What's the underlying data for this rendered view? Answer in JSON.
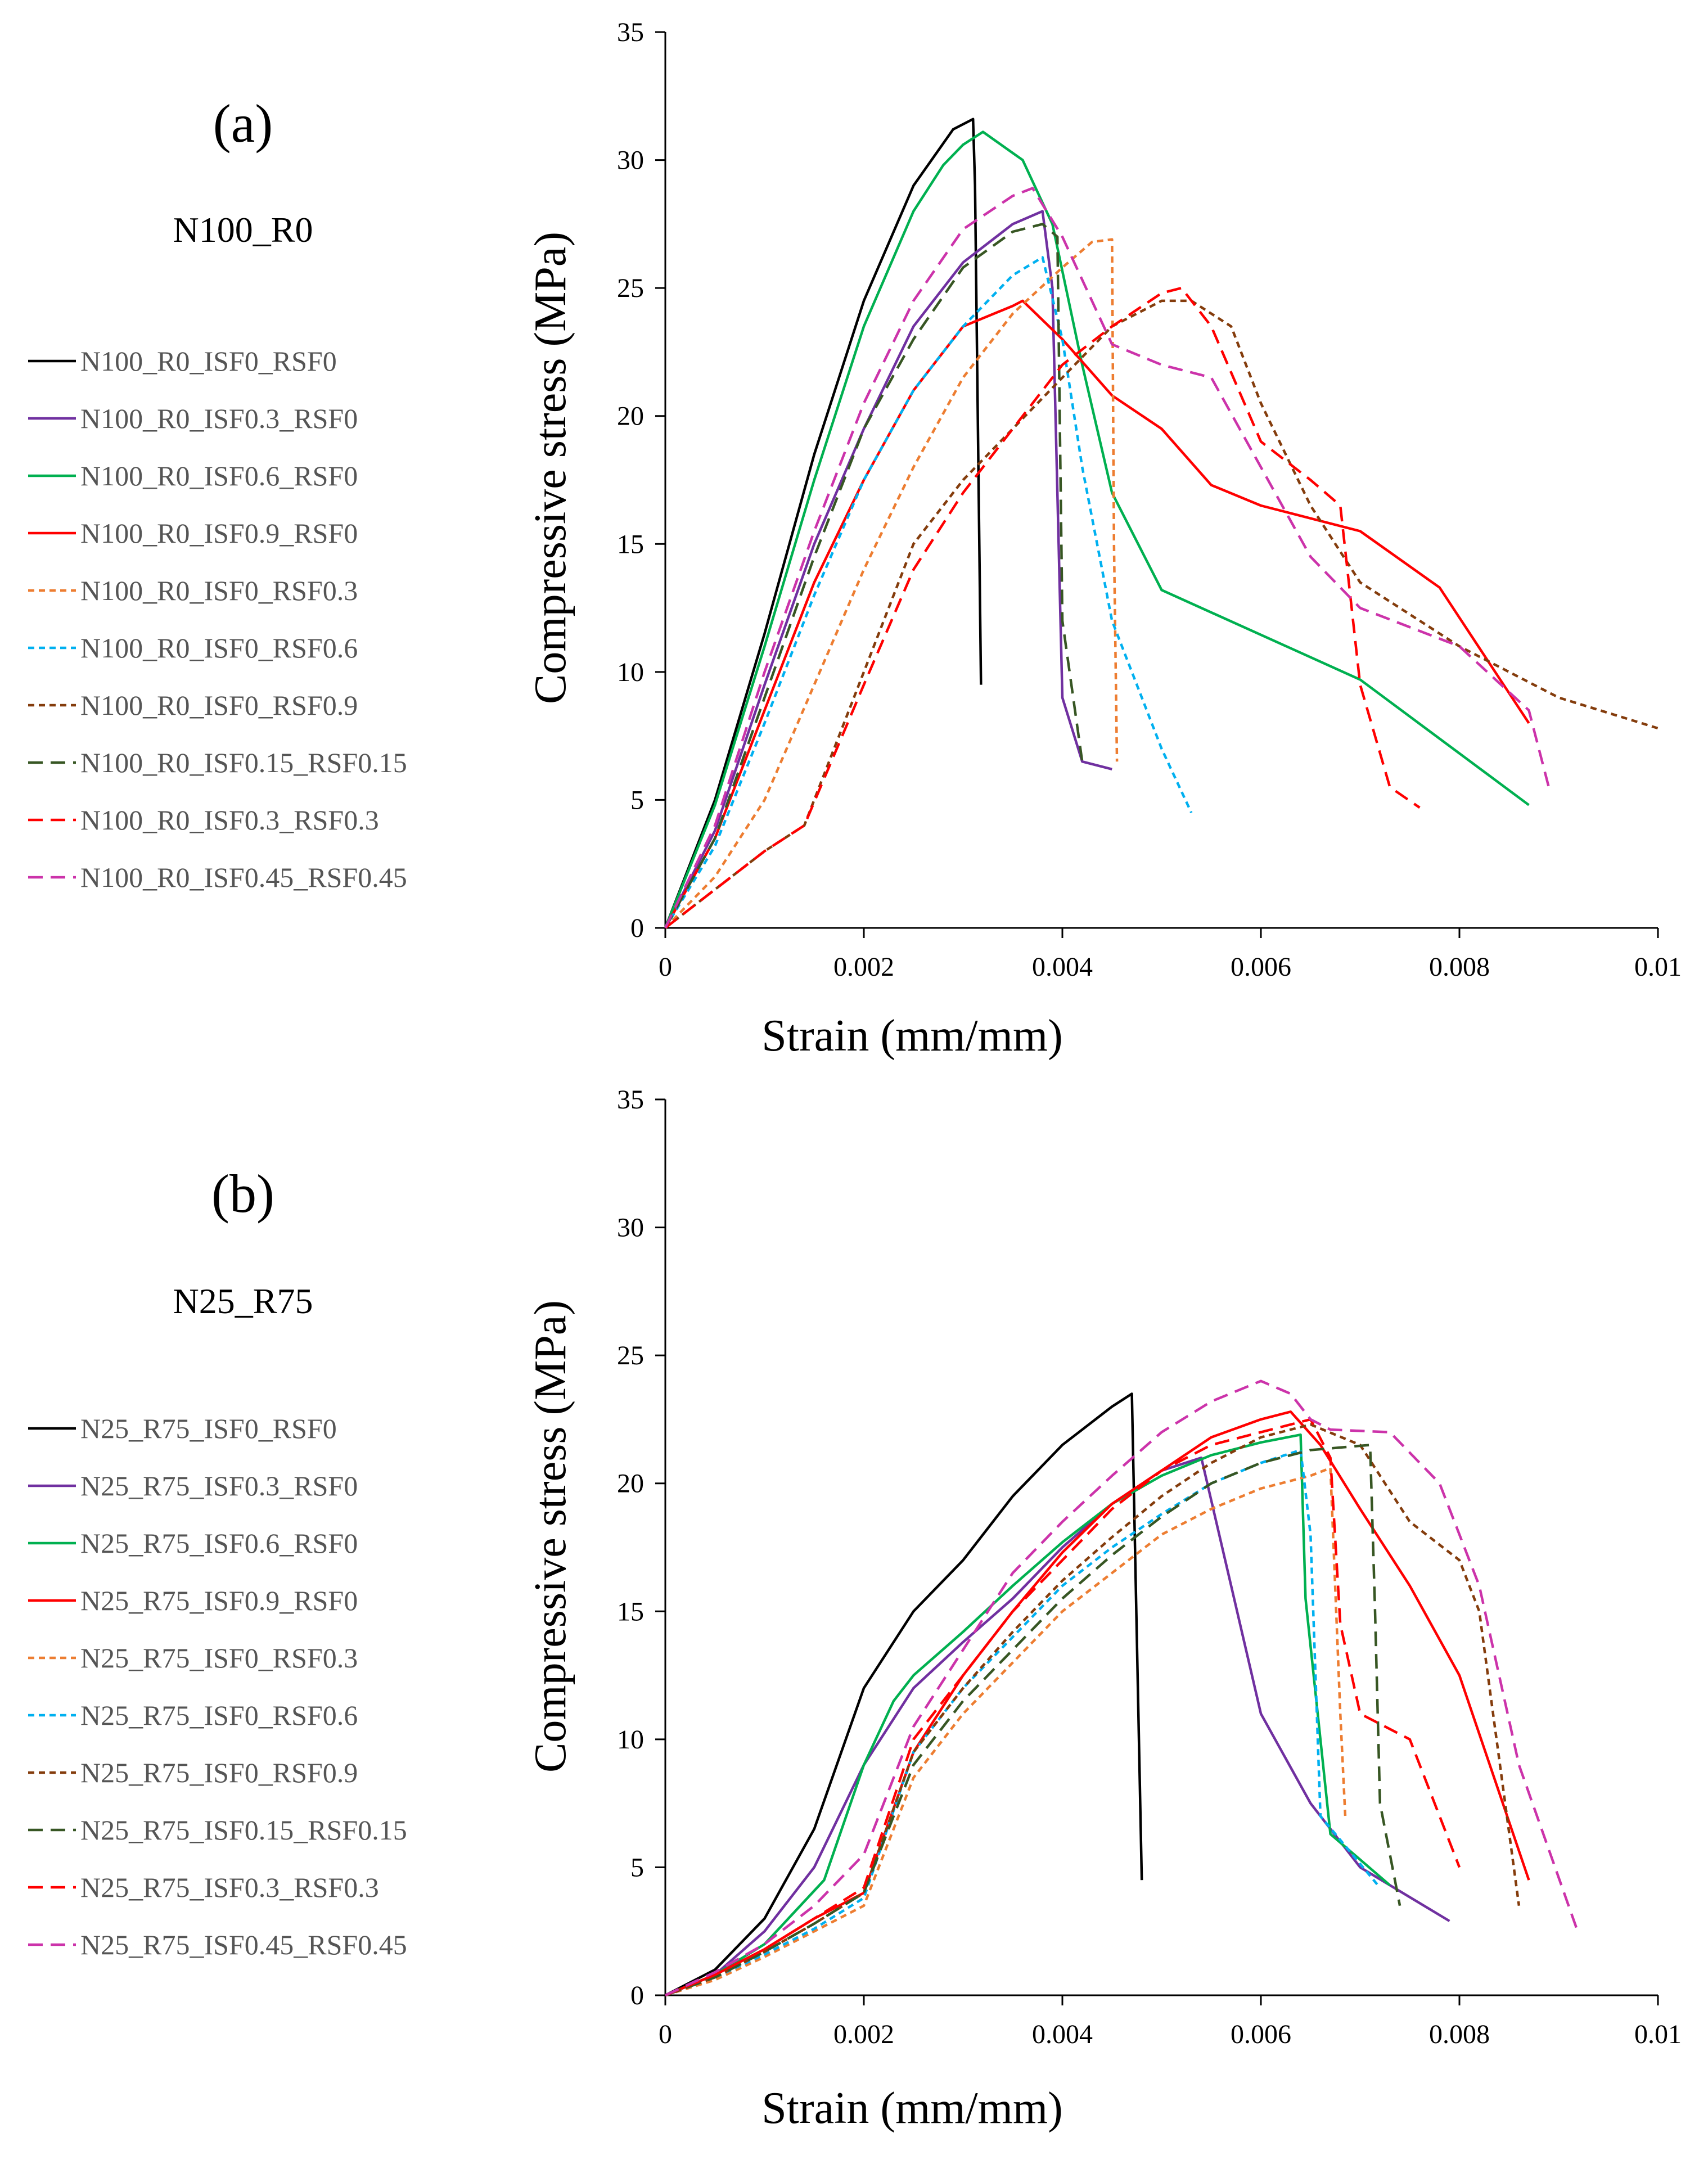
{
  "chart_data": [
    {
      "type": "line",
      "panel_label": "(a)",
      "group_label": "N100_R0",
      "xlabel": "Strain (mm/mm)",
      "ylabel": "Compressive stress (MPa)",
      "xlim": [
        0,
        0.01
      ],
      "ylim": [
        0,
        35
      ],
      "xticks": [
        0,
        0.002,
        0.004,
        0.006,
        0.008,
        0.01
      ],
      "xtick_labels": [
        "0",
        "0.002",
        "0.004",
        "0.006",
        "0.008",
        "0.01"
      ],
      "yticks": [
        0,
        5,
        10,
        15,
        20,
        25,
        30,
        35
      ],
      "ytick_labels": [
        "0",
        "5",
        "10",
        "15",
        "20",
        "25",
        "30",
        "35"
      ],
      "grid": false,
      "legend_position": "left",
      "series": [
        {
          "name": "N100_R0_ISF0_RSF0",
          "color": "#000000",
          "dash": "solid",
          "x": [
            0,
            0.0005,
            0.001,
            0.0015,
            0.002,
            0.0025,
            0.0029,
            0.0031,
            0.00312,
            0.00318
          ],
          "y": [
            0,
            5,
            11.5,
            18.5,
            24.5,
            29,
            31.2,
            31.6,
            29,
            9.5
          ]
        },
        {
          "name": "N100_R0_ISF0.3_RSF0",
          "color": "#7030A0",
          "dash": "solid",
          "x": [
            0,
            0.0005,
            0.001,
            0.0015,
            0.002,
            0.0025,
            0.003,
            0.0035,
            0.0038,
            0.0039,
            0.004,
            0.0042,
            0.0045
          ],
          "y": [
            0,
            3.8,
            9.5,
            15,
            19.5,
            23.5,
            26,
            27.5,
            28,
            25,
            9,
            6.5,
            6.2
          ]
        },
        {
          "name": "N100_R0_ISF0.6_RSF0",
          "color": "#00B050",
          "dash": "solid",
          "x": [
            0,
            0.0005,
            0.001,
            0.0015,
            0.002,
            0.0025,
            0.0028,
            0.003,
            0.0032,
            0.0036,
            0.0039,
            0.0042,
            0.0045,
            0.005,
            0.007,
            0.0087
          ],
          "y": [
            0,
            4.8,
            11,
            17.5,
            23.5,
            28,
            29.8,
            30.6,
            31.1,
            30,
            27.5,
            22,
            17,
            13.2,
            9.7,
            4.8
          ]
        },
        {
          "name": "N100_R0_ISF0.9_RSF0",
          "color": "#FF0000",
          "dash": "solid",
          "x": [
            0,
            0.0005,
            0.001,
            0.0015,
            0.002,
            0.0025,
            0.003,
            0.0035,
            0.0036,
            0.004,
            0.0045,
            0.005,
            0.0055,
            0.006,
            0.007,
            0.0078,
            0.0087
          ],
          "y": [
            0,
            3.5,
            8.5,
            13.5,
            17.5,
            21,
            23.5,
            24.3,
            24.5,
            23,
            20.8,
            19.5,
            17.3,
            16.5,
            15.5,
            13.3,
            8
          ]
        },
        {
          "name": "N100_R0_ISF0_RSF0.3",
          "color": "#ED7D31",
          "dash": "dotted",
          "x": [
            0,
            0.0005,
            0.001,
            0.0015,
            0.002,
            0.0025,
            0.003,
            0.0035,
            0.004,
            0.0043,
            0.0045,
            0.00452,
            0.00455
          ],
          "y": [
            0,
            2,
            5,
            9.5,
            14,
            18,
            21.5,
            24,
            25.8,
            26.8,
            26.9,
            15,
            6.5
          ]
        },
        {
          "name": "N100_R0_ISF0_RSF0.6",
          "color": "#00B0F0",
          "dash": "dotted",
          "x": [
            0,
            0.0005,
            0.001,
            0.0015,
            0.002,
            0.0025,
            0.003,
            0.0035,
            0.0038,
            0.004,
            0.0042,
            0.0045,
            0.005,
            0.0053
          ],
          "y": [
            0,
            3.2,
            8,
            13,
            17.5,
            21,
            23.5,
            25.5,
            26.2,
            23,
            18,
            12,
            7,
            4.5
          ]
        },
        {
          "name": "N100_R0_ISF0_RSF0.9",
          "color": "#843C0C",
          "dash": "dotted",
          "x": [
            0,
            0.0005,
            0.001,
            0.0014,
            0.002,
            0.0025,
            0.003,
            0.0035,
            0.004,
            0.0045,
            0.005,
            0.0053,
            0.0057,
            0.006,
            0.0065,
            0.007,
            0.008,
            0.009,
            0.01
          ],
          "y": [
            0,
            1.5,
            3,
            4,
            10,
            15,
            17.5,
            19.5,
            21.5,
            23.5,
            24.5,
            24.5,
            23.5,
            20.5,
            16.5,
            13.5,
            11,
            9,
            7.8
          ]
        },
        {
          "name": "N100_R0_ISF0.15_RSF0.15",
          "color": "#375623",
          "dash": "dashed",
          "x": [
            0,
            0.0005,
            0.001,
            0.0015,
            0.002,
            0.0025,
            0.003,
            0.0035,
            0.0038,
            0.00395,
            0.004,
            0.0042
          ],
          "y": [
            0,
            3.5,
            9,
            14.5,
            19.5,
            23,
            25.8,
            27.2,
            27.5,
            27,
            12,
            6.5
          ]
        },
        {
          "name": "N100_R0_ISF0.3_RSF0.3",
          "color": "#FF0000",
          "dash": "dashed",
          "x": [
            0,
            0.0005,
            0.001,
            0.0014,
            0.002,
            0.0025,
            0.003,
            0.0035,
            0.004,
            0.0045,
            0.005,
            0.0052,
            0.0055,
            0.006,
            0.0065,
            0.0068,
            0.007,
            0.0073,
            0.0076
          ],
          "y": [
            0,
            1.5,
            3,
            4,
            9.5,
            14,
            17,
            19.5,
            22,
            23.5,
            24.8,
            25,
            23.5,
            19,
            17.5,
            16.5,
            9.5,
            5.5,
            4.7
          ]
        },
        {
          "name": "N100_R0_ISF0.45_RSF0.45",
          "color": "#CC33AA",
          "dash": "dashed",
          "x": [
            0,
            0.0005,
            0.001,
            0.0015,
            0.002,
            0.0025,
            0.003,
            0.0035,
            0.0037,
            0.004,
            0.0045,
            0.005,
            0.0055,
            0.006,
            0.0065,
            0.007,
            0.008,
            0.0087,
            0.0089
          ],
          "y": [
            0,
            4,
            10,
            15.5,
            20.5,
            24.5,
            27.3,
            28.6,
            28.9,
            27,
            22.8,
            22,
            21.5,
            18,
            14.5,
            12.5,
            11,
            8.5,
            5.5
          ]
        }
      ]
    },
    {
      "type": "line",
      "panel_label": "(b)",
      "group_label": "N25_R75",
      "xlabel": "Strain (mm/mm)",
      "ylabel": "Compressive stress (MPa)",
      "xlim": [
        0,
        0.01
      ],
      "ylim": [
        0,
        35
      ],
      "xticks": [
        0,
        0.002,
        0.004,
        0.006,
        0.008,
        0.01
      ],
      "xtick_labels": [
        "0",
        "0.002",
        "0.004",
        "0.006",
        "0.008",
        "0.01"
      ],
      "yticks": [
        0,
        5,
        10,
        15,
        20,
        25,
        30,
        35
      ],
      "ytick_labels": [
        "0",
        "5",
        "10",
        "15",
        "20",
        "25",
        "30",
        "35"
      ],
      "grid": false,
      "legend_position": "left",
      "series": [
        {
          "name": "N25_R75_ISF0_RSF0",
          "color": "#000000",
          "dash": "solid",
          "x": [
            0,
            0.0005,
            0.001,
            0.0015,
            0.002,
            0.0025,
            0.003,
            0.0035,
            0.004,
            0.0045,
            0.0047,
            0.0048
          ],
          "y": [
            0,
            1,
            3,
            6.5,
            12,
            15,
            17,
            19.5,
            21.5,
            23,
            23.5,
            4.5
          ]
        },
        {
          "name": "N25_R75_ISF0.3_RSF0",
          "color": "#7030A0",
          "dash": "solid",
          "x": [
            0,
            0.0005,
            0.001,
            0.0015,
            0.002,
            0.0025,
            0.003,
            0.0035,
            0.004,
            0.0045,
            0.005,
            0.0054,
            0.0057,
            0.006,
            0.0065,
            0.007,
            0.0079
          ],
          "y": [
            0,
            0.8,
            2.5,
            5,
            9,
            12,
            13.8,
            15.5,
            17.5,
            19.2,
            20.5,
            21,
            16,
            11,
            7.5,
            5,
            2.9
          ]
        },
        {
          "name": "N25_R75_ISF0.6_RSF0",
          "color": "#00B050",
          "dash": "solid",
          "x": [
            0,
            0.0005,
            0.001,
            0.0016,
            0.002,
            0.0023,
            0.0025,
            0.003,
            0.0035,
            0.004,
            0.0045,
            0.005,
            0.0055,
            0.006,
            0.0064,
            0.00645,
            0.0067,
            0.0073
          ],
          "y": [
            0,
            0.8,
            2,
            4.5,
            9,
            11.5,
            12.5,
            14.2,
            16,
            17.7,
            19.2,
            20.3,
            21.1,
            21.6,
            21.9,
            15.5,
            6.3,
            4.3
          ]
        },
        {
          "name": "N25_R75_ISF0.9_RSF0",
          "color": "#FF0000",
          "dash": "solid",
          "x": [
            0,
            0.0005,
            0.001,
            0.0015,
            0.002,
            0.0025,
            0.003,
            0.0035,
            0.004,
            0.0045,
            0.005,
            0.0055,
            0.006,
            0.0063,
            0.0066,
            0.007,
            0.0075,
            0.008,
            0.0087
          ],
          "y": [
            0,
            0.8,
            1.8,
            3,
            4,
            9.5,
            12.5,
            15,
            17.3,
            19.2,
            20.5,
            21.8,
            22.5,
            22.8,
            21.5,
            19,
            16,
            12.5,
            4.5
          ]
        },
        {
          "name": "N25_R75_ISF0_RSF0.3",
          "color": "#ED7D31",
          "dash": "dotted",
          "x": [
            0,
            0.0005,
            0.001,
            0.0015,
            0.002,
            0.0025,
            0.003,
            0.0035,
            0.004,
            0.0045,
            0.005,
            0.0055,
            0.006,
            0.0065,
            0.0067,
            0.0068,
            0.00685
          ],
          "y": [
            0,
            0.6,
            1.5,
            2.5,
            3.5,
            8.5,
            11,
            13,
            15,
            16.5,
            18,
            19,
            19.8,
            20.3,
            20.6,
            11,
            7
          ]
        },
        {
          "name": "N25_R75_ISF0_RSF0.6",
          "color": "#00B0F0",
          "dash": "dotted",
          "x": [
            0,
            0.0005,
            0.001,
            0.0015,
            0.002,
            0.0025,
            0.003,
            0.0035,
            0.004,
            0.0045,
            0.005,
            0.0055,
            0.006,
            0.0064,
            0.0065,
            0.0066,
            0.0072
          ],
          "y": [
            0,
            0.7,
            1.6,
            2.6,
            3.8,
            9.5,
            12,
            14,
            16,
            17.5,
            18.8,
            20,
            20.8,
            21.3,
            18,
            7,
            4.2
          ]
        },
        {
          "name": "N25_R75_ISF0_RSF0.9",
          "color": "#843C0C",
          "dash": "dotted",
          "x": [
            0,
            0.0005,
            0.001,
            0.0015,
            0.002,
            0.0025,
            0.003,
            0.0035,
            0.004,
            0.0045,
            0.005,
            0.0055,
            0.006,
            0.0065,
            0.007,
            0.0075,
            0.008,
            0.0082,
            0.0086
          ],
          "y": [
            0,
            0.7,
            1.7,
            2.8,
            4,
            9.5,
            12,
            14.2,
            16.2,
            17.9,
            19.5,
            20.8,
            21.8,
            22.3,
            21.5,
            18.5,
            17,
            15,
            3.5
          ]
        },
        {
          "name": "N25_R75_ISF0.15_RSF0.15",
          "color": "#375623",
          "dash": "dashed",
          "x": [
            0,
            0.0005,
            0.001,
            0.0015,
            0.002,
            0.0025,
            0.003,
            0.0035,
            0.004,
            0.0045,
            0.005,
            0.0055,
            0.006,
            0.0065,
            0.0071,
            0.00715,
            0.0072,
            0.0074
          ],
          "y": [
            0,
            0.7,
            1.7,
            2.8,
            4,
            9,
            11.5,
            13.5,
            15.5,
            17.2,
            18.7,
            20,
            20.8,
            21.3,
            21.5,
            15,
            7.5,
            3.5
          ]
        },
        {
          "name": "N25_R75_ISF0.3_RSF0.3",
          "color": "#FF0000",
          "dash": "dashed",
          "x": [
            0,
            0.0005,
            0.001,
            0.0015,
            0.002,
            0.0025,
            0.003,
            0.0035,
            0.004,
            0.0045,
            0.005,
            0.0055,
            0.006,
            0.0065,
            0.0067,
            0.0068,
            0.007,
            0.0075,
            0.008
          ],
          "y": [
            0,
            0.8,
            1.8,
            3,
            4.2,
            10,
            12.5,
            15,
            17,
            19,
            20.5,
            21.5,
            22,
            22.5,
            21,
            14.5,
            11,
            10,
            5
          ]
        },
        {
          "name": "N25_R75_ISF0.45_RSF0.45",
          "color": "#CC33AA",
          "dash": "dashed",
          "x": [
            0,
            0.0005,
            0.001,
            0.0015,
            0.002,
            0.0025,
            0.003,
            0.0035,
            0.004,
            0.0045,
            0.005,
            0.0055,
            0.006,
            0.0063,
            0.0065,
            0.0067,
            0.0073,
            0.0078,
            0.0082,
            0.0086,
            0.0092
          ],
          "y": [
            0,
            0.9,
            2,
            3.5,
            5.5,
            10.5,
            13.5,
            16.5,
            18.5,
            20.3,
            22,
            23.2,
            24,
            23.5,
            22.5,
            22.1,
            22,
            20,
            16,
            9,
            2.4
          ]
        }
      ]
    }
  ]
}
